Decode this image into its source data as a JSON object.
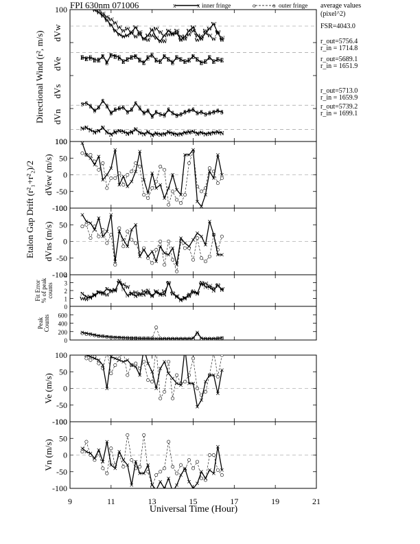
{
  "chart_data": {
    "type": "line",
    "title": "FPI 630nm 071006",
    "xlabel": "Universal Time (Hour)",
    "xlim": [
      9,
      21
    ],
    "x_ticks": [
      9,
      11,
      13,
      15,
      17,
      19,
      21
    ],
    "legend": {
      "placement": "top-right",
      "items": [
        {
          "marker": "x",
          "style": "solid",
          "label": "inner fringe"
        },
        {
          "marker": "o",
          "style": "dashed",
          "label": "outer fringe"
        }
      ],
      "note": "average values (pixel^2)"
    },
    "annotations": {
      "fsr": "FSR=4043.0",
      "radii": [
        {
          "r_out": "r_out=5756.4",
          "r_in": "r_in = 1714.8"
        },
        {
          "r_out": "r_out=5689.1",
          "r_in": "r_in = 1651.9"
        },
        {
          "r_out": "r_out=5713.0",
          "r_in": "r_in = 1659.9"
        },
        {
          "r_out": "r_out=5739.2",
          "r_in": "r_in = 1699.1"
        }
      ]
    },
    "group_labels": {
      "directional": "Directional Wind (r², m/s)",
      "etalon": "Etalon Gap Drift (r²₁+r²₂)/2"
    },
    "x_inner": [
      9.6,
      9.8,
      10,
      10.2,
      10.4,
      10.6,
      10.8,
      11,
      11.2,
      11.4,
      11.6,
      11.8,
      12,
      12.2,
      12.4,
      12.6,
      12.8,
      13,
      13.2,
      13.4,
      13.6,
      13.8,
      14,
      14.2,
      14.4,
      14.6,
      14.8,
      15,
      15.2,
      15.4,
      15.6,
      15.8,
      16,
      16.2,
      16.4
    ],
    "x_outer": [
      9.6,
      9.8,
      10,
      10.2,
      10.4,
      10.6,
      10.8,
      11,
      11.2,
      11.4,
      11.6,
      11.8,
      12,
      12.2,
      12.4,
      12.6,
      12.8,
      13,
      13.2,
      13.4,
      13.6,
      13.8,
      14,
      14.2,
      14.4,
      14.6,
      14.8,
      15,
      15.2,
      15.4,
      15.6,
      15.8,
      16,
      16.2,
      16.4
    ],
    "panels": [
      {
        "id": "directional",
        "ylim": [
          -100,
          100
        ],
        "y_ticks": [
          -100,
          -50,
          0,
          50,
          100
        ],
        "y_tick_labels": [
          "100",
          "",
          "",
          "",
          "100"
        ],
        "sub_labels": [
          "dVw",
          "dVe",
          "dVs",
          "dVn"
        ],
        "traces": [
          {
            "letter": "W",
            "offset": 75,
            "inner": [
              95,
              93,
              82,
              70,
              60,
              45,
              25,
              5,
              -20,
              -35,
              -45,
              -40,
              -25,
              -5,
              -35,
              -55,
              -40,
              -15,
              -50,
              -65,
              -40,
              -20,
              -35,
              -30,
              -60,
              -45,
              -20,
              -5,
              -40,
              -55,
              -30,
              -10,
              10,
              -30,
              -60
            ],
            "outer": [
              92,
              88,
              80,
              85,
              73,
              55,
              40,
              30,
              15,
              -5,
              -20,
              -10,
              -30,
              -45,
              -25,
              -55,
              -60,
              -40,
              -10,
              -25,
              -65,
              -35,
              -30,
              -20,
              -45,
              -55,
              -35,
              -20,
              -60,
              -45,
              -20,
              -40,
              -55,
              -25,
              -50
            ]
          },
          {
            "letter": "E",
            "offset": 35,
            "inner": [
              -20,
              -25,
              -20,
              -30,
              -35,
              -15,
              -45,
              -10,
              -15,
              -20,
              -40,
              -30,
              -20,
              -15,
              -35,
              -45,
              -20,
              -10,
              -35,
              -40,
              -15,
              -30,
              -45,
              -20,
              -30,
              -40,
              -35,
              -15,
              -30,
              -45,
              -40,
              -20,
              -40,
              -30,
              -35
            ],
            "outer": [
              -22,
              -28,
              -25,
              -35,
              -30,
              -18,
              -40,
              -12,
              -18,
              -25,
              -38,
              -28,
              -22,
              -18,
              -30,
              -42,
              -25,
              -12,
              -32,
              -38,
              -18,
              -28,
              -40,
              -22,
              -28,
              -38,
              -32,
              -18,
              -28,
              -42,
              -38,
              -22,
              -38,
              -28,
              -32
            ]
          },
          {
            "letter": "S",
            "offset": -45,
            "inner": [
              5,
              10,
              -5,
              -25,
              -10,
              20,
              -5,
              -35,
              -20,
              -15,
              -10,
              -30,
              -20,
              10,
              -15,
              -35,
              -25,
              -50,
              -30,
              -40,
              -45,
              -20,
              -35,
              -45,
              -40,
              -30,
              -25,
              -20,
              -35,
              -30,
              -40,
              -35,
              -30,
              -25,
              -30
            ],
            "outer": [
              5,
              8,
              -3,
              -20,
              -8,
              18,
              -3,
              -30,
              -18,
              -12,
              -8,
              -28,
              -18,
              8,
              -12,
              -30,
              -22,
              -45,
              -28,
              -38,
              -40,
              -18,
              -32,
              -42,
              -38,
              -28,
              -22,
              -18,
              -32,
              -28,
              -38,
              -32,
              -28,
              -22,
              -28
            ]
          },
          {
            "letter": "N",
            "offset": -82,
            "inner": [
              5,
              8,
              -2,
              -10,
              -5,
              8,
              -12,
              -20,
              -10,
              -5,
              -8,
              -15,
              -10,
              0,
              -12,
              -18,
              -10,
              -22,
              -15,
              -20,
              -18,
              -10,
              -15,
              -20,
              -18,
              -12,
              -10,
              -8,
              -15,
              -12,
              -18,
              -15,
              -12,
              -10,
              -14
            ],
            "outer": [
              5,
              10,
              -1,
              -12,
              -6,
              10,
              -10,
              -22,
              -12,
              -6,
              -10,
              -18,
              -12,
              2,
              -14,
              -20,
              -12,
              -25,
              -18,
              -22,
              -20,
              -12,
              -18,
              -22,
              -20,
              -14,
              -12,
              -10,
              -18,
              -14,
              -20,
              -18,
              -14,
              -12,
              -16
            ]
          }
        ]
      },
      {
        "id": "dvew",
        "ylabel": "dVew (m/s)",
        "ylim": [
          -100,
          100
        ],
        "y_ticks": [
          -100,
          -50,
          0,
          50,
          100
        ],
        "y_tick_labels": [
          "-100",
          "-50",
          "0",
          "50",
          "100"
        ],
        "inner": [
          95,
          60,
          50,
          30,
          55,
          -15,
          0,
          20,
          75,
          -30,
          -5,
          -35,
          -20,
          10,
          70,
          -15,
          -55,
          5,
          -40,
          -30,
          -70,
          -40,
          0,
          -45,
          -60,
          60,
          60,
          75,
          -80,
          -95,
          -60,
          10,
          -10,
          60,
          0
        ],
        "outer": [
          65,
          60,
          60,
          40,
          15,
          35,
          -40,
          -10,
          -10,
          5,
          -30,
          0,
          10,
          35,
          25,
          -60,
          -70,
          -40,
          -20,
          25,
          15,
          -90,
          -50,
          -75,
          -85,
          -60,
          35,
          70,
          -35,
          -50,
          -40,
          20,
          10,
          -25,
          -10
        ]
      },
      {
        "id": "dvns",
        "ylabel": "dVns (m/s)",
        "ylim": [
          -100,
          100
        ],
        "y_ticks": [
          -100,
          -50,
          0,
          50,
          100
        ],
        "y_tick_labels": [
          "-100",
          "-50",
          "0",
          "50",
          "100"
        ],
        "inner": [
          80,
          60,
          55,
          35,
          70,
          15,
          30,
          80,
          -60,
          30,
          5,
          -15,
          35,
          50,
          -45,
          -25,
          -45,
          -30,
          -60,
          -15,
          -35,
          -40,
          -20,
          -70,
          10,
          -5,
          -15,
          5,
          25,
          15,
          -10,
          60,
          20,
          -40,
          -40
        ],
        "outer": [
          45,
          50,
          10,
          45,
          15,
          35,
          -5,
          20,
          -70,
          40,
          -15,
          30,
          5,
          -5,
          -35,
          -20,
          -50,
          -65,
          -25,
          0,
          -70,
          0,
          -55,
          -90,
          0,
          -20,
          -20,
          -55,
          10,
          -50,
          -60,
          -45,
          20,
          -25,
          15
        ]
      },
      {
        "id": "fit-error",
        "ylabel": "Fit Error % of peak counts",
        "ylim": [
          0,
          4
        ],
        "y_ticks": [
          0,
          1,
          2,
          3,
          4
        ],
        "y_tick_labels": [
          "0",
          "1",
          "2",
          "3",
          "4"
        ],
        "inner": [
          1.6,
          1.2,
          1.1,
          1.4,
          1.8,
          1.7,
          2.2,
          2.0,
          2.0,
          3.2,
          2.2,
          1.4,
          1.6,
          1.3,
          1.6,
          1.5,
          2.0,
          1.3,
          1.8,
          1.5,
          1.5,
          3.0,
          1.7,
          1.2,
          0.8,
          1.0,
          1.5,
          1.9,
          1.6,
          3.0,
          2.5,
          2.4,
          2.0,
          2.7,
          2.1
        ],
        "outer": [
          1.0,
          0.9,
          1.2,
          1.5,
          1.8,
          1.6,
          1.5,
          1.9,
          2.1,
          3.0,
          2.8,
          2.5,
          1.6,
          1.8,
          1.5,
          1.9,
          1.7,
          1.4,
          1.9,
          1.6,
          1.9,
          2.9,
          1.6,
          1.3,
          0.9,
          1.1,
          1.3,
          1.8,
          1.7,
          2.8,
          2.9,
          2.6,
          2.3,
          2.6,
          2.2
        ]
      },
      {
        "id": "peak-counts",
        "ylabel": "Peak Counts",
        "ylim": [
          0,
          800
        ],
        "y_ticks": [
          0,
          200,
          400,
          600,
          800
        ],
        "y_tick_labels": [
          "0",
          "200",
          "400",
          "600",
          ""
        ],
        "inner": [
          180,
          160,
          140,
          120,
          100,
          90,
          80,
          70,
          65,
          60,
          55,
          50,
          45,
          45,
          40,
          40,
          40,
          35,
          35,
          30,
          30,
          30,
          30,
          30,
          30,
          30,
          30,
          40,
          180,
          40,
          30,
          30,
          30,
          40,
          50
        ],
        "outer": [
          160,
          140,
          130,
          110,
          90,
          85,
          75,
          65,
          60,
          55,
          50,
          50,
          45,
          45,
          40,
          40,
          40,
          40,
          300,
          35,
          30,
          30,
          30,
          30,
          30,
          30,
          30,
          30,
          150,
          30,
          30,
          30,
          30,
          40,
          45
        ]
      },
      {
        "id": "ve",
        "ylabel": "Ve (m/s)",
        "ylim": [
          -100,
          100
        ],
        "y_ticks": [
          -100,
          -50,
          0,
          50,
          100
        ],
        "y_tick_labels": [
          "-100",
          "-50",
          "0",
          "50",
          "100"
        ],
        "inner": [
          110,
          100,
          95,
          90,
          85,
          70,
          0,
          95,
          90,
          85,
          80,
          85,
          70,
          65,
          40,
          120,
          75,
          50,
          0,
          60,
          80,
          45,
          30,
          15,
          10,
          120,
          15,
          15,
          -55,
          -35,
          20,
          40,
          40,
          -15,
          55
        ],
        "outer": [
          105,
          90,
          85,
          95,
          75,
          60,
          110,
          45,
          70,
          90,
          110,
          40,
          70,
          75,
          60,
          80,
          25,
          20,
          120,
          -30,
          -10,
          80,
          -30,
          40,
          15,
          20,
          40,
          90,
          0,
          -20,
          -10,
          40,
          110,
          35,
          100
        ]
      },
      {
        "id": "vn",
        "ylabel": "Vn (m/s)",
        "ylim": [
          -100,
          100
        ],
        "y_ticks": [
          -100,
          -50,
          0,
          50,
          100
        ],
        "y_tick_labels": [
          "-100",
          "-50",
          "0",
          "50",
          "100"
        ],
        "inner": [
          20,
          10,
          5,
          -10,
          15,
          -20,
          40,
          -30,
          -40,
          10,
          -15,
          -30,
          -90,
          -20,
          -55,
          -55,
          -30,
          -90,
          -105,
          -80,
          -100,
          -70,
          -110,
          -90,
          -60,
          -40,
          -80,
          -100,
          -85,
          -50,
          -70,
          -45,
          -55,
          25,
          -45
        ],
        "outer": [
          10,
          40,
          0,
          -15,
          5,
          -40,
          -55,
          20,
          -30,
          0,
          -35,
          60,
          -15,
          -40,
          -35,
          60,
          -50,
          -95,
          -60,
          -50,
          -40,
          40,
          -35,
          -55,
          -30,
          -45,
          -15,
          -40,
          -20,
          -70,
          -75,
          0,
          0,
          -45,
          -60
        ]
      }
    ]
  }
}
